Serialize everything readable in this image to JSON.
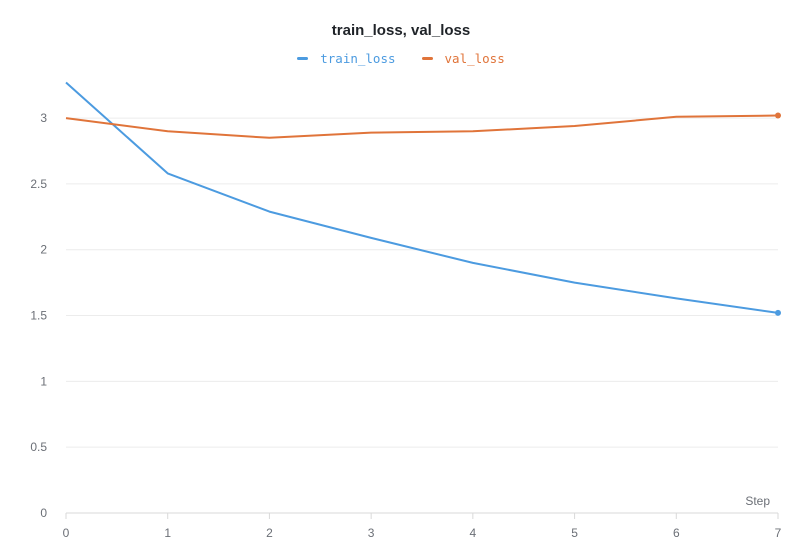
{
  "chart_data": {
    "type": "line",
    "title": "train_loss, val_loss",
    "xlabel": "Step",
    "ylabel": "",
    "x": [
      0,
      1,
      2,
      3,
      4,
      5,
      6,
      7
    ],
    "xlim": [
      0,
      7
    ],
    "ylim": [
      0,
      3.3
    ],
    "y_ticks": [
      0,
      0.5,
      1,
      1.5,
      2,
      2.5,
      3
    ],
    "y_tick_labels": [
      "0",
      "0.5",
      "1",
      "1.5",
      "2",
      "2.5",
      "3"
    ],
    "x_ticks": [
      0,
      1,
      2,
      3,
      4,
      5,
      6,
      7
    ],
    "x_tick_labels": [
      "0",
      "1",
      "2",
      "3",
      "4",
      "5",
      "6",
      "7"
    ],
    "grid": true,
    "legend_position": "top-center",
    "series": [
      {
        "name": "train_loss",
        "color": "#4c9be0",
        "values": [
          3.27,
          2.58,
          2.29,
          2.09,
          1.9,
          1.75,
          1.63,
          1.52
        ]
      },
      {
        "name": "val_loss",
        "color": "#e0743a",
        "values": [
          3.0,
          2.9,
          2.85,
          2.89,
          2.9,
          2.94,
          3.01,
          3.02
        ]
      }
    ]
  }
}
